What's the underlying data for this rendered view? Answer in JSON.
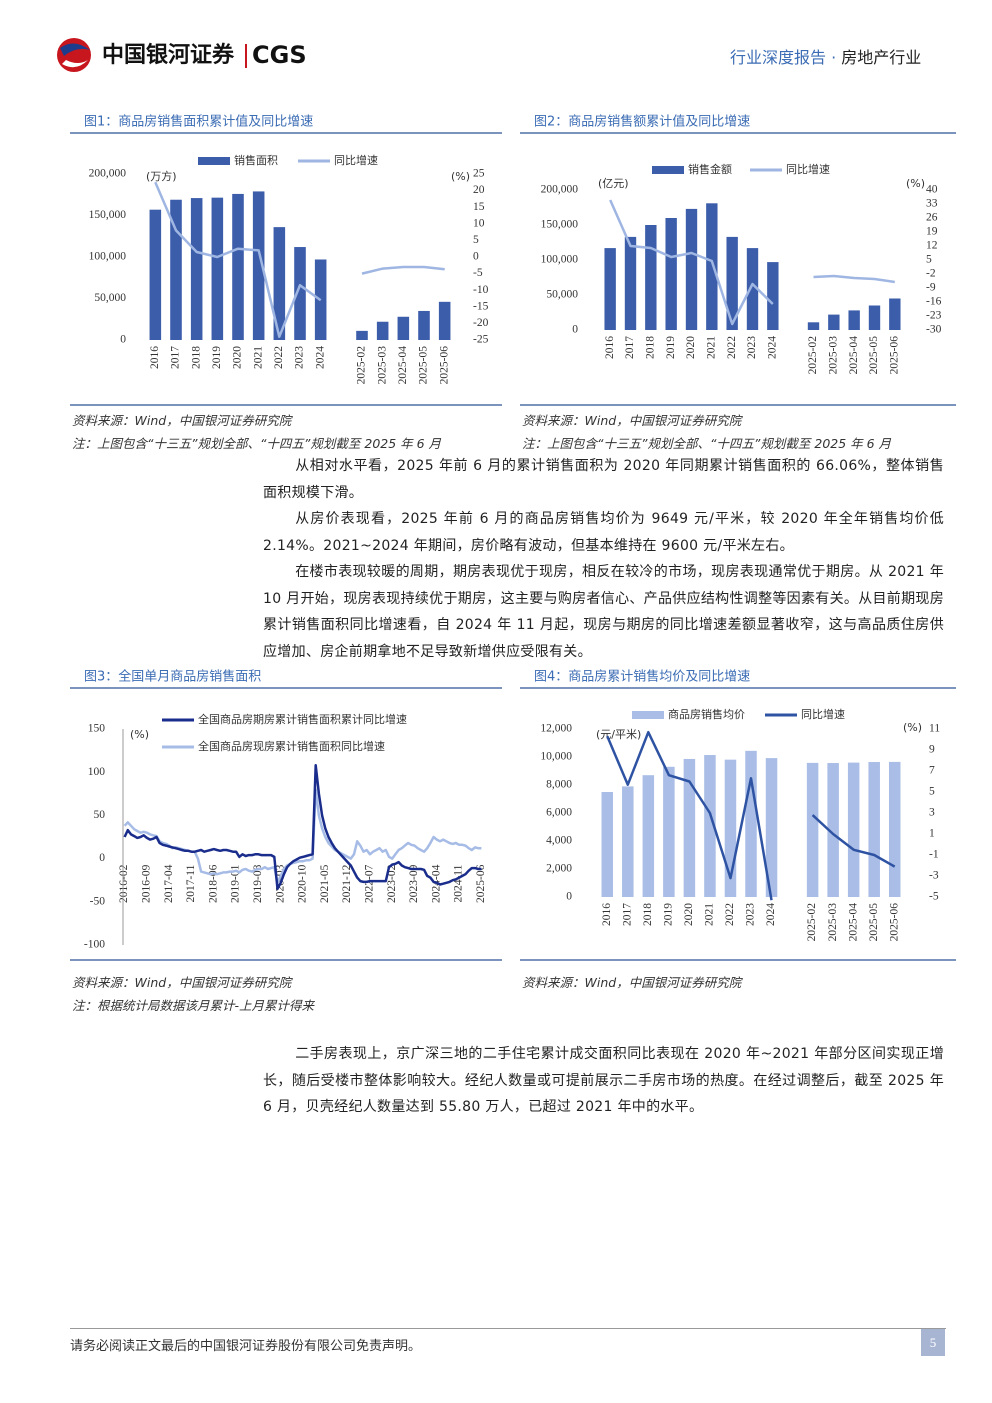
{
  "header": {
    "company": "中国银河证券",
    "brand": "CGS",
    "report_type": "行业深度报告 ·",
    "industry": "房地产行业"
  },
  "chart_data": [
    {
      "type": "combo",
      "title": "图1：商品房销售面积累计值及同比增速",
      "y_unit": "(万方)",
      "y2_unit": "(%)",
      "categories": [
        "2016",
        "2017",
        "2018",
        "2019",
        "2020",
        "2021",
        "2022",
        "2023",
        "2024",
        null,
        "2025-02",
        "2025-03",
        "2025-04",
        "2025-05",
        "2025-06"
      ],
      "series": [
        {
          "name": "销售面积",
          "kind": "bar",
          "color": "#3b5daa",
          "values": [
            157000,
            169000,
            171000,
            171500,
            176000,
            179000,
            136000,
            112000,
            97000,
            null,
            11000,
            22000,
            28000,
            35000,
            46000
          ]
        },
        {
          "name": "同比增速",
          "kind": "line",
          "axis": "y2",
          "color": "#9fb6e2",
          "values": [
            22.5,
            8,
            1.5,
            0,
            2.5,
            2,
            -24,
            -8.5,
            -13,
            null,
            -5,
            -3.5,
            -3,
            -3,
            -3.7
          ]
        }
      ],
      "ylim": [
        0,
        200000
      ],
      "yticks": [
        0,
        {
          "value": 50000,
          "label": "50,000"
        },
        {
          "value": 100000,
          "label": "100,000"
        },
        {
          "value": 150000,
          "label": "150,000"
        },
        {
          "value": 200000,
          "label": "200,000"
        }
      ],
      "y2lim": [
        -25,
        25
      ],
      "y2ticks": [
        -25,
        -20,
        -15,
        -10,
        -5,
        0,
        5,
        10,
        15,
        20,
        25
      ],
      "source": "资料来源：Wind，中国银河证券研究院",
      "note": "注：上图包含“十三五”规划全部、“十四五”规划截至 2025 年 6 月"
    },
    {
      "type": "combo",
      "title": "图2：商品房销售额累计值及同比增速",
      "y_unit": "(亿元)",
      "y2_unit": "(%)",
      "categories": [
        "2016",
        "2017",
        "2018",
        "2019",
        "2020",
        "2021",
        "2022",
        "2023",
        "2024",
        null,
        "2025-02",
        "2025-03",
        "2025-04",
        "2025-05",
        "2025-06"
      ],
      "series": [
        {
          "name": "销售金额",
          "kind": "bar",
          "color": "#3b5daa",
          "values": [
            117000,
            133000,
            150000,
            160000,
            173000,
            181000,
            133000,
            117000,
            97000,
            null,
            11000,
            22000,
            28000,
            35000,
            45000
          ]
        },
        {
          "name": "同比增速",
          "kind": "line",
          "axis": "y2",
          "color": "#9fb6e2",
          "values": [
            35,
            12,
            11,
            6.5,
            8.5,
            4.5,
            -27,
            -7,
            -17,
            null,
            -3.5,
            -3,
            -4,
            -4.5,
            -6
          ]
        }
      ],
      "ylim": [
        0,
        200000
      ],
      "yticks": [
        0,
        {
          "value": 50000,
          "label": "50,000"
        },
        {
          "value": 100000,
          "label": "100,000"
        },
        {
          "value": 150000,
          "label": "150,000"
        },
        {
          "value": 200000,
          "label": "200,000"
        }
      ],
      "y2lim": [
        -30,
        40
      ],
      "y2ticks": [
        -30,
        -23,
        -16,
        -9,
        -2,
        5,
        12,
        19,
        26,
        33,
        40
      ],
      "source": "资料来源：Wind，中国银河证券研究院",
      "note": "注：上图包含“十三五”规划全部、“十四五”规划截至 2025 年 6 月"
    },
    {
      "type": "line",
      "title": "图3：全国单月商品房销售面积",
      "y_unit": "(%)",
      "categories": [
        "2016-02",
        null,
        null,
        null,
        null,
        null,
        null,
        "2016-09",
        null,
        null,
        null,
        null,
        null,
        null,
        "2017-04",
        null,
        null,
        null,
        null,
        null,
        null,
        "2017-11",
        null,
        null,
        null,
        null,
        null,
        null,
        "2018-06",
        null,
        null,
        null,
        null,
        null,
        null,
        "2019-01",
        null,
        null,
        null,
        null,
        null,
        null,
        "2019-08",
        null,
        null,
        null,
        null,
        null,
        null,
        "2020-03",
        null,
        null,
        null,
        null,
        null,
        null,
        "2020-10",
        null,
        null,
        null,
        null,
        null,
        null,
        "2021-05",
        null,
        null,
        null,
        null,
        null,
        null,
        "2021-12",
        null,
        null,
        null,
        null,
        null,
        null,
        "2022-07",
        null,
        null,
        null,
        null,
        null,
        null,
        "2023-02",
        null,
        null,
        null,
        null,
        null,
        null,
        "2023-09",
        null,
        null,
        null,
        null,
        null,
        null,
        "2024-04",
        null,
        null,
        null,
        null,
        null,
        null,
        "2024-11",
        null,
        null,
        null,
        null,
        null,
        null,
        "2025-06"
      ],
      "series": [
        {
          "name": "全国商品房期房累计销售面积累计同比增速",
          "color": "#1a2d8c",
          "values": [
            25,
            33,
            28,
            26,
            24,
            25,
            27,
            24,
            22,
            23,
            25,
            18,
            16,
            15,
            14,
            13,
            12,
            11,
            10,
            9,
            9,
            8,
            8,
            9,
            10,
            8,
            9,
            10,
            11,
            10,
            9,
            10,
            10,
            9,
            8,
            8,
            2,
            5,
            3,
            4,
            4,
            5,
            5,
            4,
            4,
            4,
            4,
            2,
            -35,
            -28,
            -18,
            -10,
            -6,
            -3,
            -1,
            1,
            2,
            3,
            4,
            5,
            108,
            75,
            50,
            35,
            25,
            18,
            12,
            8,
            4,
            0,
            -4,
            -8,
            -15,
            -22,
            -26,
            -27,
            -27,
            -26,
            -26,
            -26,
            -26,
            -26,
            -26,
            -10,
            -7,
            -6,
            -4,
            -8,
            -10,
            -11,
            -12,
            -12,
            -12,
            -12,
            -13,
            -20,
            -22,
            -27,
            -28,
            -30,
            -29,
            -28,
            -27,
            -25,
            -24,
            -22,
            -20,
            -18,
            -14,
            -11,
            -11,
            -12,
            -12
          ]
        },
        {
          "name": "全国商品房现房累计销售面积同比增速",
          "color": "#a6bce6",
          "values": [
            38,
            42,
            38,
            34,
            32,
            30,
            31,
            30,
            28,
            27,
            26,
            20,
            18,
            17,
            15,
            12,
            13,
            12,
            11,
            10,
            9,
            8,
            8,
            0,
            -15,
            -16,
            -17,
            -18,
            -17,
            -18,
            -17,
            -16,
            -16,
            -15,
            -15,
            -14,
            -16,
            -13,
            -12,
            -14,
            -15,
            -13,
            -12,
            -12,
            -10,
            -12,
            -11,
            -10,
            -28,
            -20,
            -12,
            -8,
            -6,
            -5,
            -4,
            -3,
            -3,
            -2,
            -2,
            0,
            80,
            50,
            35,
            25,
            18,
            14,
            10,
            8,
            6,
            4,
            2,
            0,
            5,
            20,
            15,
            8,
            10,
            5,
            8,
            10,
            12,
            8,
            10,
            2,
            0,
            5,
            10,
            12,
            15,
            18,
            16,
            15,
            12,
            10,
            8,
            12,
            18,
            25,
            22,
            20,
            22,
            20,
            18,
            17,
            18,
            16,
            16,
            15,
            12,
            10,
            13,
            12,
            12
          ]
        }
      ],
      "ylim": [
        -100,
        150
      ],
      "yticks": [
        -100,
        -50,
        0,
        50,
        100,
        150
      ],
      "source": "资料来源：Wind，中国银河证券研究院",
      "note": "注：根据统计局数据该月累计-上月累计得来"
    },
    {
      "type": "combo",
      "title": "图4：商品房累计销售均价及同比增速",
      "y_unit": "(元/平米)",
      "y2_unit": "(%)",
      "categories": [
        "2016",
        "2017",
        "2018",
        "2019",
        "2020",
        "2021",
        "2022",
        "2023",
        "2024",
        null,
        "2025-02",
        "2025-03",
        "2025-04",
        "2025-05",
        "2025-06"
      ],
      "series": [
        {
          "name": "商品房销售均价",
          "kind": "bar",
          "color": "#a9bde6",
          "values": [
            7500,
            7900,
            8700,
            9300,
            9860,
            10140,
            9810,
            10440,
            9920,
            null,
            9580,
            9570,
            9600,
            9640,
            9650
          ]
        },
        {
          "name": "同比增速",
          "kind": "line",
          "axis": "y2",
          "color": "#2f53a3",
          "values": [
            10.3,
            5.7,
            10.7,
            6.6,
            6,
            3,
            -3.2,
            6.3,
            -5.3,
            null,
            2.8,
            1,
            -0.5,
            -1,
            -2.1
          ]
        }
      ],
      "ylim": [
        0,
        12000
      ],
      "yticks": [
        0,
        {
          "value": 2000,
          "label": "2,000"
        },
        {
          "value": 4000,
          "label": "4,000"
        },
        {
          "value": 6000,
          "label": "6,000"
        },
        {
          "value": 8000,
          "label": "8,000"
        },
        {
          "value": 10000,
          "label": "10,000"
        },
        {
          "value": 12000,
          "label": "12,000"
        }
      ],
      "y2lim": [
        -5,
        11
      ],
      "y2ticks": [
        -5,
        -3,
        -1,
        1,
        3,
        5,
        7,
        9,
        11
      ],
      "source": "资料来源：Wind，中国银河证券研究院"
    }
  ],
  "paragraphs": [
    "从相对水平看，2025 年前 6 月的累计销售面积为 2020 年同期累计销售面积的 66.06%，整体销售面积规模下滑。",
    "从房价表现看，2025 年前 6 月的商品房销售均价为 9649 元/平米，较 2020 年全年销售均价低 2.14%。2021~2024 年期间，房价略有波动，但基本维持在 9600 元/平米左右。",
    "在楼市表现较暖的周期，期房表现优于现房，相反在较冷的市场，现房表现通常优于期房。从 2021 年 10 月开始，现房表现持续优于期房，这主要与购房者信心、产品供应结构性调整等因素有关。从目前期现房累计销售面积同比增速看，自 2024 年 11 月起，现房与期房的同比增速差额显著收窄，这与高品质住房供应增加、房企前期拿地不足导致新增供应受限有关。",
    "二手房表现上，京广深三地的二手住宅累计成交面积同比表现在 2020 年~2021 年部分区间实现正增长，随后受楼市整体影响较大。经纪人数量或可提前展示二手房市场的热度。在经过调整后，截至 2025 年 6 月，贝壳经纪人数量达到 55.80 万人，已超过 2021 年中的水平。"
  ],
  "footer": {
    "disclaimer": "请务必阅读正文最后的中国银河证券股份有限公司免责声明。",
    "page": "5"
  }
}
